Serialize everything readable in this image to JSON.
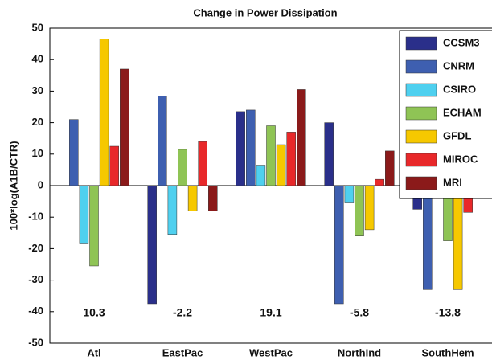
{
  "chart_data": {
    "type": "bar",
    "title": "Change in Power Dissipation",
    "y_label": "100*log(A1B/CTR)",
    "categories": [
      "Atl",
      "EastPac",
      "WestPac",
      "NorthInd",
      "SouthHem"
    ],
    "series": [
      {
        "name": "CCSM3",
        "color": "#2a2f8a",
        "values": [
          null,
          -37.5,
          23.5,
          20,
          -7.5
        ]
      },
      {
        "name": "CNRM",
        "color": "#3e5fb0",
        "values": [
          21,
          28.5,
          24,
          -37.5,
          -33
        ]
      },
      {
        "name": "CSIRO",
        "color": "#4fd0ef",
        "values": [
          -18.5,
          -15.5,
          6.5,
          -5.5,
          -3
        ]
      },
      {
        "name": "ECHAM",
        "color": "#8fc455",
        "values": [
          -25.5,
          11.5,
          19,
          -16,
          -17.5
        ]
      },
      {
        "name": "GFDL",
        "color": "#f6c800",
        "values": [
          46.5,
          -8,
          13,
          -14,
          -33
        ]
      },
      {
        "name": "MIROC",
        "color": "#e8282a",
        "values": [
          12.5,
          14,
          17,
          2,
          -8.5
        ]
      },
      {
        "name": "MRI",
        "color": "#8b1a1a",
        "values": [
          37,
          -8,
          30.5,
          11,
          6
        ]
      }
    ],
    "annotations": [
      10.3,
      -2.2,
      19.1,
      -5.8,
      -13.8
    ],
    "ylim": [
      -50,
      50
    ],
    "yticks": [
      -50,
      -40,
      -30,
      -20,
      -10,
      0,
      10,
      20,
      30,
      40,
      50
    ],
    "legend": "upper right"
  }
}
